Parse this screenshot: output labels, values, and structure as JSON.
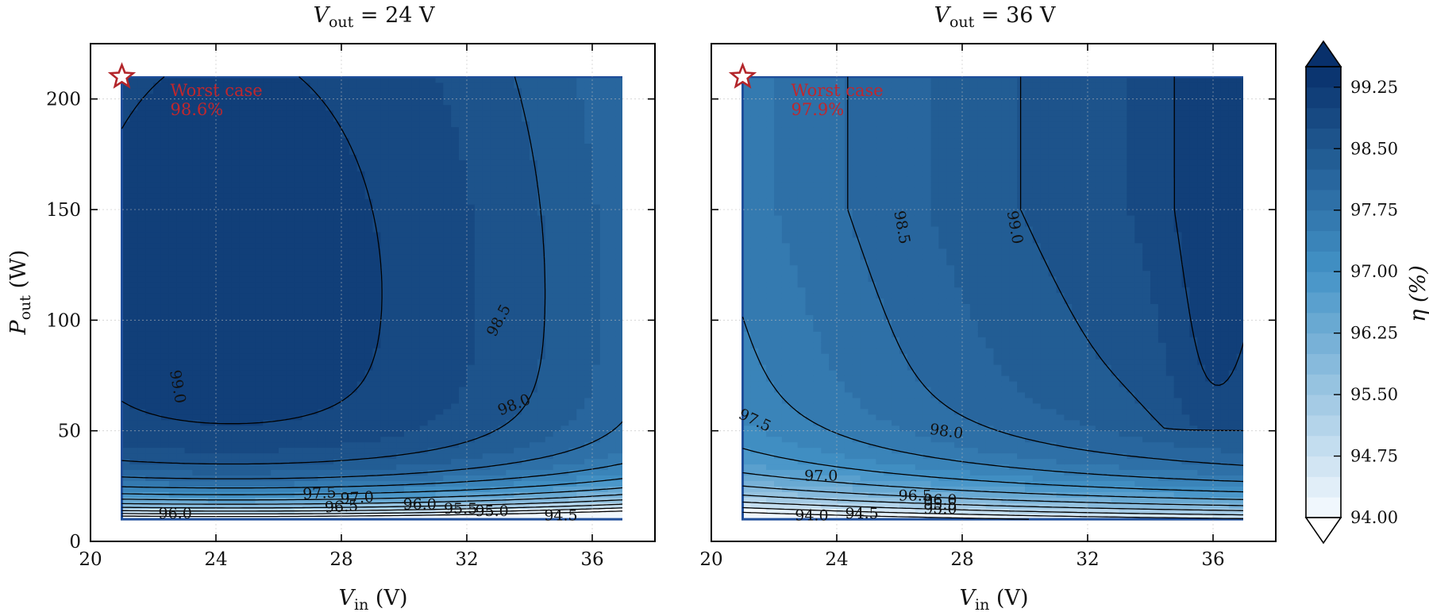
{
  "chart_data": {
    "type": "heatmap",
    "colorbar": {
      "label": "η (%)",
      "range": [
        94.0,
        99.5
      ],
      "ticks": [
        "94.00",
        "94.75",
        "95.50",
        "96.25",
        "97.00",
        "97.75",
        "98.50",
        "99.25"
      ],
      "levels": 22,
      "extend": "both",
      "colors": [
        "#f7fbff",
        "#08306b"
      ]
    },
    "panels": [
      {
        "title_main": "V",
        "title_sub": "out",
        "title_rest": " = 24 V",
        "xlabel_main": "V",
        "xlabel_sub": "in",
        "xlabel_rest": " (V)",
        "ylabel_main": "P",
        "ylabel_sub": "out",
        "ylabel_rest": " (W)",
        "xlim": [
          20,
          38
        ],
        "ylim": [
          0,
          225
        ],
        "xticks": [
          "20",
          "24",
          "28",
          "32",
          "36"
        ],
        "yticks": [
          "0",
          "50",
          "100",
          "150",
          "200"
        ],
        "x_range": [
          21,
          37
        ],
        "y_range": [
          10,
          210
        ],
        "grid": true,
        "worst_case": {
          "x": 21,
          "y": 210,
          "label": "Worst case",
          "value": "98.6%"
        },
        "contour_labels": [
          "99.0",
          "98.5",
          "98.0",
          "97.5",
          "97.0",
          "96.5",
          "96.0",
          "96.0",
          "95.5",
          "95.0",
          "94.5"
        ]
      },
      {
        "title_main": "V",
        "title_sub": "out",
        "title_rest": " = 36 V",
        "xlabel_main": "V",
        "xlabel_sub": "in",
        "xlabel_rest": " (V)",
        "xlim": [
          20,
          38
        ],
        "ylim": [
          0,
          225
        ],
        "xticks": [
          "20",
          "24",
          "28",
          "32",
          "36"
        ],
        "yticks": [],
        "x_range": [
          21,
          37
        ],
        "y_range": [
          10,
          210
        ],
        "grid": true,
        "worst_case": {
          "x": 21,
          "y": 210,
          "label": "Worst case",
          "value": "97.9%"
        },
        "contour_labels": [
          "98.5",
          "99.0",
          "97.5",
          "98.0",
          "97.0",
          "96.5",
          "96.0",
          "95.5",
          "95.0",
          "94.0",
          "94.5"
        ]
      }
    ]
  }
}
